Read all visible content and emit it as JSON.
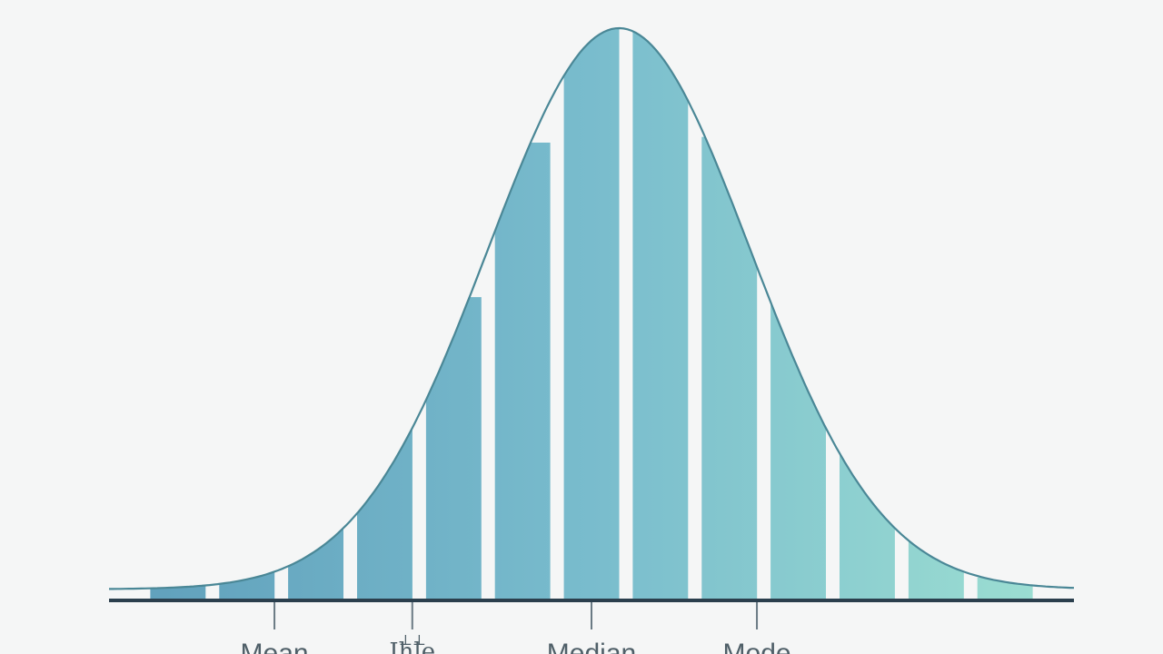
{
  "chart_data": {
    "type": "bar",
    "title": "",
    "xlabel": "",
    "ylabel": "",
    "x_range": [
      -3.5,
      3.5
    ],
    "ylim": [
      0,
      1
    ],
    "bars": [
      {
        "x": -3.0,
        "value": 0.03
      },
      {
        "x": -2.5,
        "value": 0.09
      },
      {
        "x": -2.0,
        "value": 0.13
      },
      {
        "x": -1.5,
        "value": 0.31
      },
      {
        "x": -1.0,
        "value": 0.53
      },
      {
        "x": -0.5,
        "value": 0.8
      },
      {
        "x": 0.0,
        "value": 1.0
      },
      {
        "x": 0.5,
        "value": 1.0
      },
      {
        "x": 1.0,
        "value": 0.81
      },
      {
        "x": 1.5,
        "value": 0.6
      },
      {
        "x": 2.0,
        "value": 0.31
      },
      {
        "x": 2.5,
        "value": 0.11
      },
      {
        "x": 3.0,
        "value": 0.04
      }
    ],
    "curve": {
      "type": "normal",
      "mean": 0.2,
      "sd": 0.95
    },
    "ticks": [
      {
        "x": -2.3,
        "label": "Mean"
      },
      {
        "x": -1.3,
        "label": "⊥⊥\nIhle"
      },
      {
        "x": 0.0,
        "label": "Median"
      },
      {
        "x": 1.2,
        "label": "Mode"
      }
    ],
    "colors": {
      "bar_left": "#5f9fbb",
      "bar_mid": "#79bccd",
      "bar_right": "#9ee0d2",
      "curve": "#4a8796",
      "baseline": "#2b3f4d",
      "tick": "#6a7a84",
      "background": "#f5f6f6"
    },
    "grid": false,
    "legend": "none"
  }
}
